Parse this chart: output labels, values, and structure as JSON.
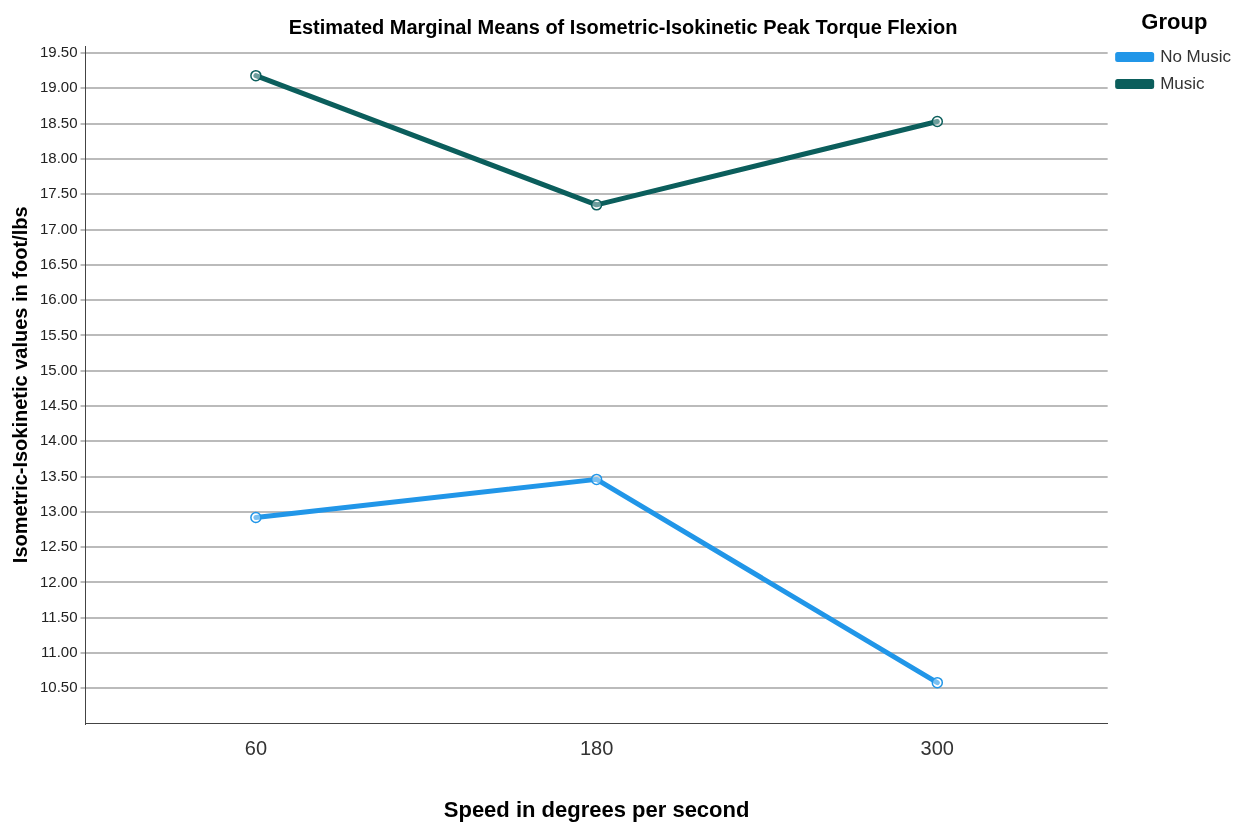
{
  "chart_data": {
    "type": "line",
    "title": "Estimated Marginal Means of Isometric-Isokinetic Peak Torque Flexion",
    "xlabel": "Speed in degrees per second",
    "ylabel": "Isometric-Isokinetic values in foot/lbs",
    "legend_title": "Group",
    "categories": [
      "60",
      "180",
      "300"
    ],
    "series": [
      {
        "name": "No Music",
        "color": "#2196e8",
        "values": [
          12.92,
          13.46,
          10.58
        ]
      },
      {
        "name": "Music",
        "color": "#0b5e5c",
        "values": [
          19.18,
          17.35,
          18.53
        ]
      }
    ],
    "ylim": [
      10.0,
      19.6
    ],
    "yticks": [
      {
        "value": 10.5,
        "label": "10.50"
      },
      {
        "value": 11,
        "label": "11.00"
      },
      {
        "value": 11.5,
        "label": "11.50"
      },
      {
        "value": 12,
        "label": "12.00"
      },
      {
        "value": 12.5,
        "label": "12.50"
      },
      {
        "value": 13,
        "label": "13.00"
      },
      {
        "value": 13.5,
        "label": "13.50"
      },
      {
        "value": 14,
        "label": "14.00"
      },
      {
        "value": 14.5,
        "label": "14.50"
      },
      {
        "value": 15,
        "label": "15.00"
      },
      {
        "value": 15.5,
        "label": "15.50"
      },
      {
        "value": 16,
        "label": "16.00"
      },
      {
        "value": 16.5,
        "label": "16.50"
      },
      {
        "value": 17,
        "label": "17.00"
      },
      {
        "value": 17.5,
        "label": "17.50"
      },
      {
        "value": 18,
        "label": "18.00"
      },
      {
        "value": 18.5,
        "label": "18.50"
      },
      {
        "value": 19,
        "label": "19.00"
      },
      {
        "value": 19.5,
        "label": "19.50"
      }
    ],
    "grid": "y",
    "legend": "top right",
    "marker": "circle",
    "line_style": "solid"
  }
}
